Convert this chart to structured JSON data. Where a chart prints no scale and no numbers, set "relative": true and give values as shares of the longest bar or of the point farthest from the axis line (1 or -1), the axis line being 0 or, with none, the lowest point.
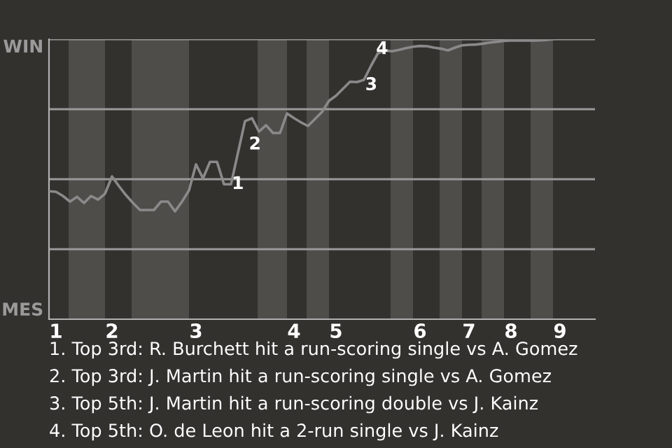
{
  "chart_data": {
    "type": "line",
    "relative": true,
    "categories": [
      null,
      "1",
      null,
      null,
      null,
      null,
      null,
      null,
      null,
      "2",
      null,
      null,
      null,
      null,
      null,
      null,
      null,
      null,
      null,
      null,
      null,
      "3",
      null,
      null,
      null,
      null,
      null,
      null,
      null,
      null,
      null,
      null,
      null,
      null,
      null,
      "4",
      null,
      null,
      null,
      null,
      null,
      "5",
      null,
      null,
      null,
      null,
      null,
      null,
      null,
      null,
      null,
      null,
      null,
      "6",
      null,
      null,
      null,
      null,
      null,
      null,
      "7",
      null,
      null,
      null,
      null,
      null,
      "8",
      null,
      null,
      null,
      null,
      null,
      null,
      "9",
      null,
      null,
      null,
      null,
      null
    ],
    "series": [
      {
        "color": "#8a8a8a",
        "values": [
          0.457,
          0.455,
          0.44,
          0.42,
          0.437,
          0.415,
          0.44,
          0.427,
          0.448,
          0.51,
          0.475,
          0.443,
          0.415,
          0.39,
          0.39,
          0.39,
          0.42,
          0.42,
          0.385,
          0.42,
          0.46,
          0.553,
          0.503,
          0.562,
          0.562,
          0.482,
          0.482,
          0.595,
          0.707,
          0.718,
          0.67,
          0.693,
          0.665,
          0.665,
          0.735,
          0.718,
          0.703,
          0.69,
          0.715,
          0.74,
          0.78,
          0.798,
          0.823,
          0.848,
          0.847,
          0.855,
          0.905,
          0.95,
          0.96,
          0.957,
          0.962,
          0.968,
          0.973,
          0.976,
          0.975,
          0.97,
          0.966,
          0.96,
          0.97,
          0.978,
          0.98,
          0.981,
          0.984,
          0.988,
          0.991,
          0.994,
          0.995,
          0.995,
          0.995,
          0.995,
          0.996,
          0.997,
          1,
          null,
          null,
          null,
          null,
          null,
          null
        ]
      }
    ],
    "grid": "y",
    "line_style": "solid",
    "annotations": [
      "WIN",
      "MES",
      {
        "text": "1",
        "y": 0.482
      },
      {
        "text": "2",
        "y": 0.707
      },
      {
        "text": "3",
        "y": 0.905
      },
      {
        "text": "4",
        "y": 0.95
      },
      "1. Top 3rd: R. Burchett hit a run-scoring single vs A. Gomez",
      "2. Top 3rd: J. Martin hit a run-scoring single vs A. Gomez",
      "3. Top 5th: J. Martin hit a run-scoring double vs J. Kainz",
      "4. Top 5th: O. de Leon hit a 2-run single vs J. Kainz"
    ]
  }
}
